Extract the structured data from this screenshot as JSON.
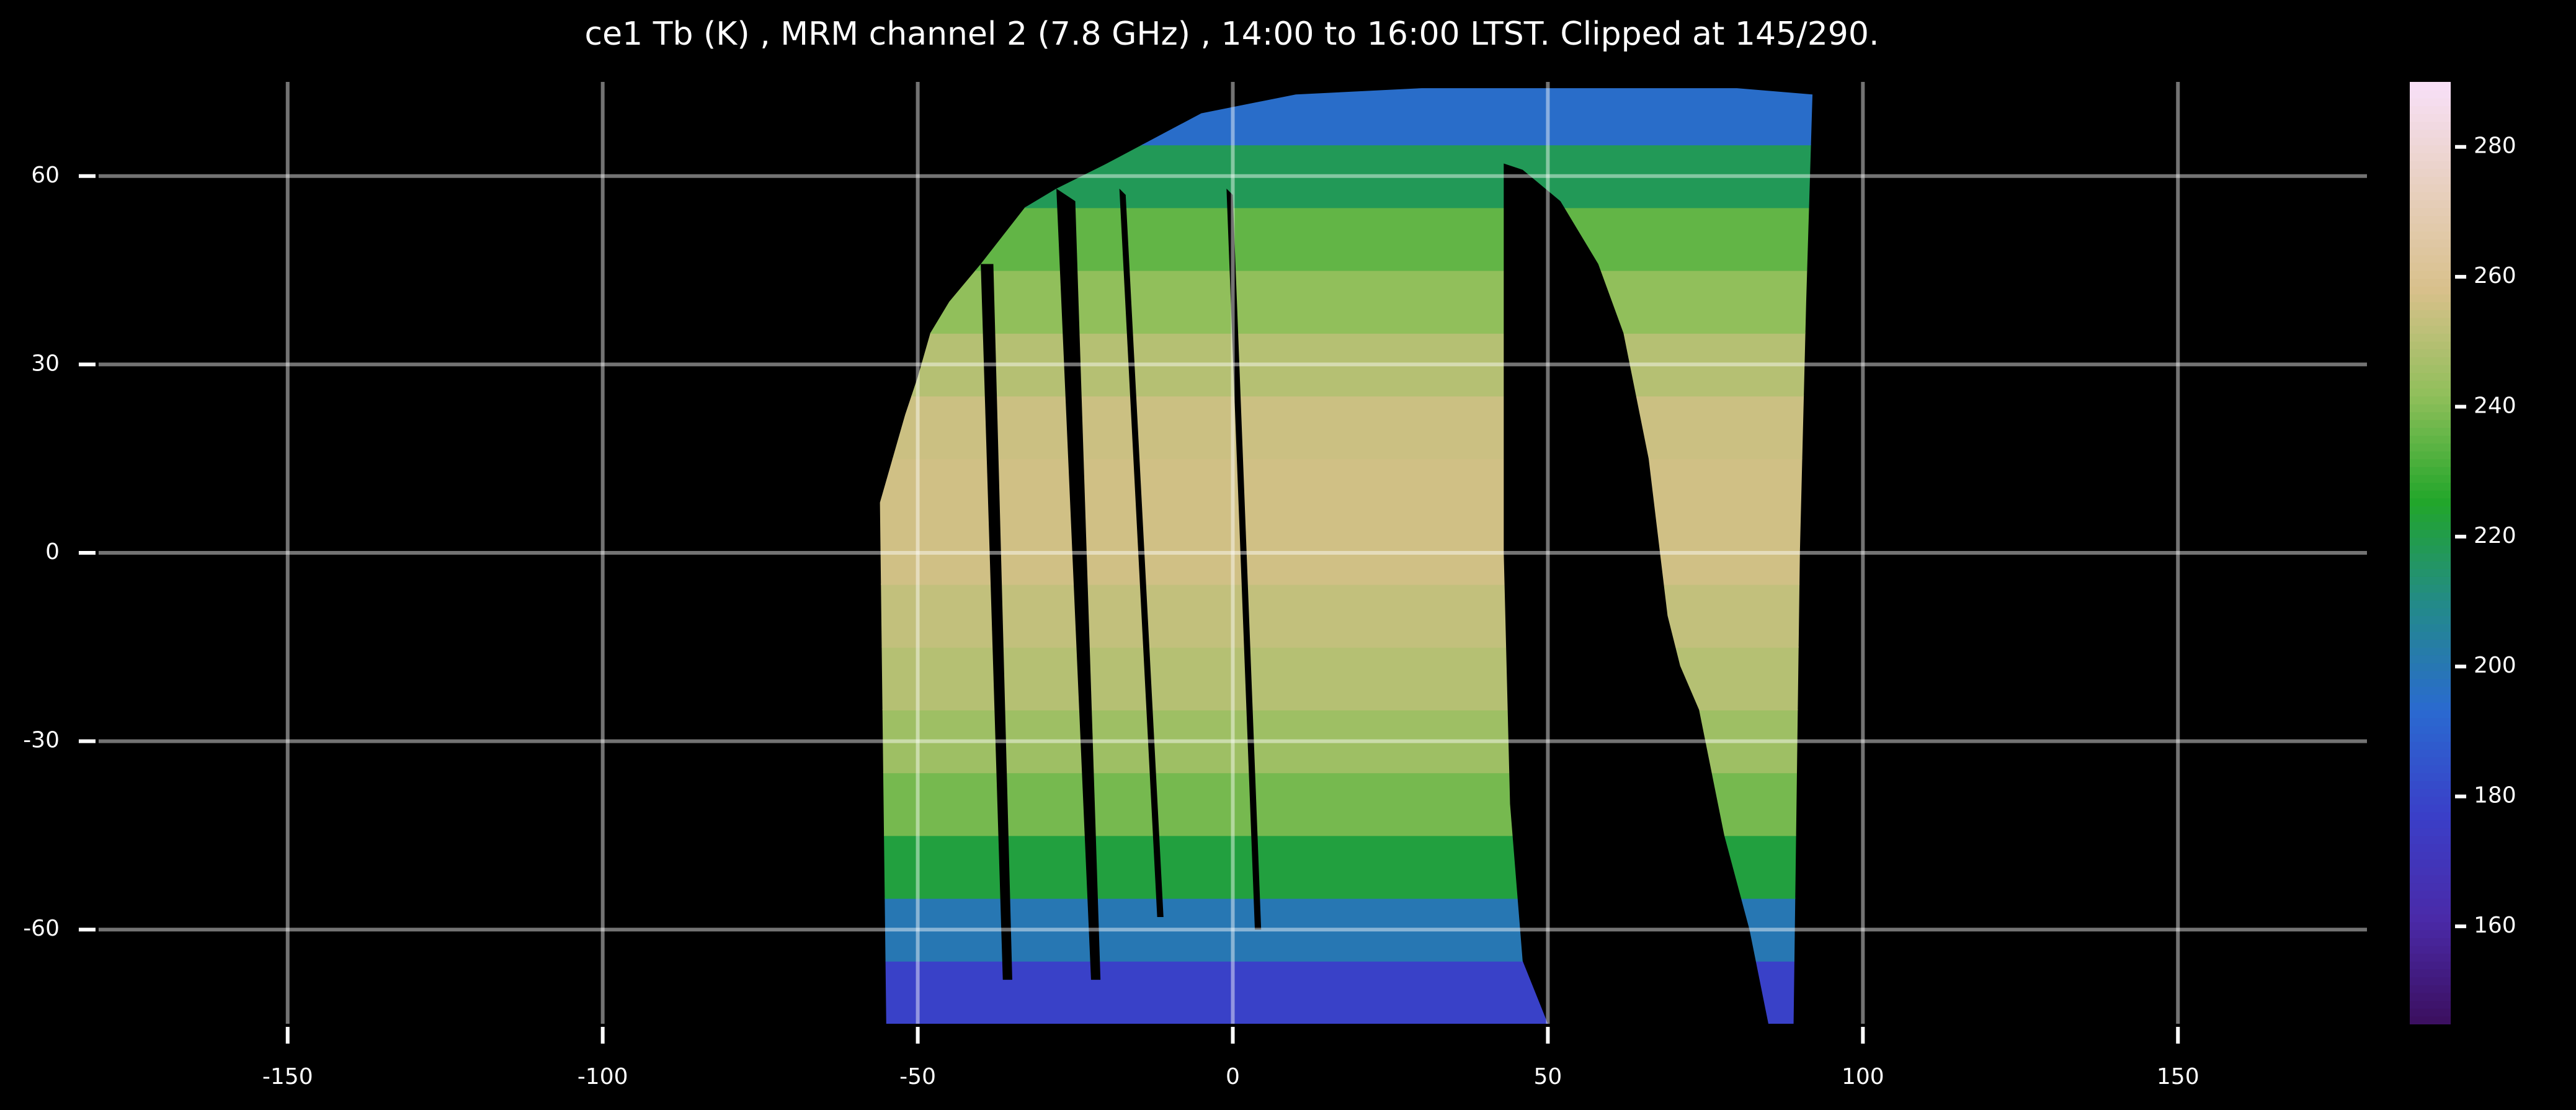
{
  "chart_data": {
    "type": "heatmap",
    "title": "ce1 Tb (K) , MRM channel 2 (7.8 GHz) , 14:00 to 16:00 LTST. Clipped at 145/290.",
    "xlim": [
      -180,
      180
    ],
    "ylim": [
      -75,
      75
    ],
    "xticks": [
      -150,
      -100,
      -50,
      0,
      50,
      100,
      150
    ],
    "yticks": [
      -60,
      -30,
      0,
      30,
      60
    ],
    "grid": true,
    "lat_edges": [
      -75,
      -65,
      -55,
      -45,
      -35,
      -25,
      -15,
      -5,
      5,
      15,
      25,
      35,
      45,
      55,
      65,
      75
    ],
    "values": [
      178,
      200,
      222,
      238,
      245,
      250,
      253,
      256,
      256,
      255,
      250,
      242,
      235,
      218,
      195
    ],
    "clim": [
      145,
      290
    ],
    "cticks": [
      160,
      180,
      200,
      220,
      240,
      260,
      280
    ],
    "colormap": [
      "#3b0f5e",
      "#4a2aa8",
      "#3a3fc8",
      "#2a6ad0",
      "#238a8a",
      "#22a62a",
      "#8fbf5a",
      "#d8c08a",
      "#e8d0c0",
      "#f8e0f8"
    ]
  }
}
